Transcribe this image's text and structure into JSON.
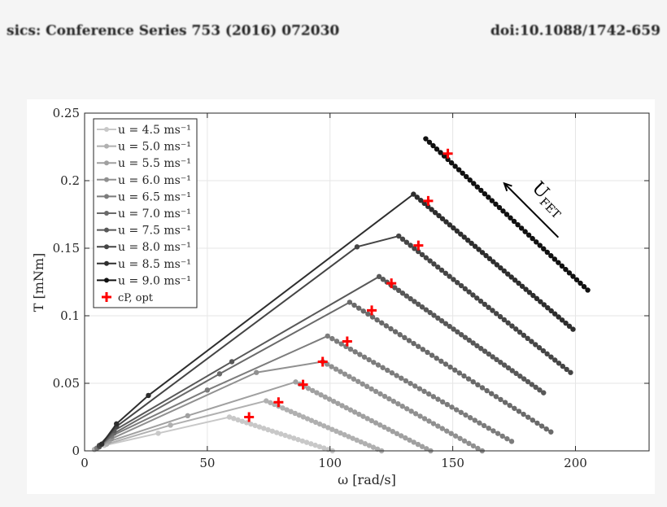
{
  "header": {
    "left": "sics: Conference Series 753 (2016) 072030",
    "right": "doi:10.1088/1742-659"
  },
  "chart_data": {
    "type": "line",
    "xlabel": "ω [rad/s]",
    "ylabel": "T [mNm]",
    "xlim": [
      0,
      230
    ],
    "ylim": [
      0,
      0.25
    ],
    "xticks": [
      0,
      50,
      100,
      150,
      200
    ],
    "xtick_labels": [
      "0",
      "50",
      "100",
      "150",
      "200"
    ],
    "yticks": [
      0,
      0.05,
      0.1,
      0.15,
      0.2,
      0.25
    ],
    "ytick_labels": [
      "0",
      "0.05",
      "0.1",
      "0.15",
      "0.2",
      "0.25"
    ],
    "grid": true,
    "legend_position": "top-left",
    "series": [
      {
        "name": "u = 4.5 ms⁻¹",
        "color": "#c8c8c8",
        "rise": [
          [
            4,
            0.001
          ],
          [
            8,
            0.004
          ],
          [
            30,
            0.013
          ],
          [
            59,
            0.025
          ]
        ],
        "fall_end": [
          101,
          0
        ],
        "n_fall": 24
      },
      {
        "name": "u = 5.0 ms⁻¹",
        "color": "#b0b0b0",
        "rise": [
          [
            4,
            0.001
          ],
          [
            9,
            0.005
          ],
          [
            35,
            0.019
          ],
          [
            74,
            0.037
          ]
        ],
        "fall_end": [
          121,
          0
        ],
        "n_fall": 28
      },
      {
        "name": "u = 5.5 ms⁻¹",
        "color": "#a0a0a0",
        "rise": [
          [
            5,
            0.002
          ],
          [
            10,
            0.007
          ],
          [
            42,
            0.026
          ],
          [
            86,
            0.051
          ]
        ],
        "fall_end": [
          141,
          0
        ],
        "n_fall": 32
      },
      {
        "name": "u = 6.0 ms⁻¹",
        "color": "#909090",
        "rise": [
          [
            5,
            0.002
          ],
          [
            11,
            0.009
          ],
          [
            70,
            0.058
          ],
          [
            97,
            0.066
          ]
        ],
        "fall_end": [
          162,
          0
        ],
        "n_fall": 36
      },
      {
        "name": "u = 6.5 ms⁻¹",
        "color": "#7c7c7c",
        "rise": [
          [
            5,
            0.002
          ],
          [
            11,
            0.011
          ],
          [
            50,
            0.045
          ],
          [
            99,
            0.085
          ]
        ],
        "fall_end": [
          174,
          0.007
        ],
        "n_fall": 40
      },
      {
        "name": "u = 7.0 ms⁻¹",
        "color": "#6a6a6a",
        "rise": [
          [
            6,
            0.003
          ],
          [
            12,
            0.013
          ],
          [
            55,
            0.057
          ],
          [
            108,
            0.11
          ]
        ],
        "fall_end": [
          190,
          0.014
        ],
        "n_fall": 44
      },
      {
        "name": "u = 7.5 ms⁻¹",
        "color": "#585858",
        "rise": [
          [
            6,
            0.003
          ],
          [
            12,
            0.015
          ],
          [
            60,
            0.066
          ],
          [
            120,
            0.129
          ]
        ],
        "fall_end": [
          187,
          0.043
        ],
        "n_fall": 42
      },
      {
        "name": "u = 8.0 ms⁻¹",
        "color": "#454545",
        "rise": [
          [
            6,
            0.004
          ],
          [
            13,
            0.018
          ],
          [
            111,
            0.151
          ],
          [
            128,
            0.159
          ]
        ],
        "fall_end": [
          198,
          0.058
        ],
        "n_fall": 44
      },
      {
        "name": "u = 8.5 ms⁻¹",
        "color": "#2e2e2e",
        "rise": [
          [
            7,
            0.005
          ],
          [
            13,
            0.02
          ],
          [
            26,
            0.041
          ],
          [
            134,
            0.19
          ]
        ],
        "fall_end": [
          199,
          0.09
        ],
        "n_fall": 44
      },
      {
        "name": "u = 9.0 ms⁻¹",
        "color": "#111111",
        "rise": [
          [
            139,
            0.231
          ]
        ],
        "fall_end": [
          205,
          0.119
        ],
        "n_fall": 44
      }
    ],
    "optimum": {
      "name": "cP, opt",
      "color": "#ff0000",
      "points": [
        [
          67,
          0.025
        ],
        [
          79,
          0.036
        ],
        [
          89,
          0.049
        ],
        [
          97,
          0.066
        ],
        [
          107,
          0.081
        ],
        [
          117,
          0.104
        ],
        [
          125,
          0.124
        ],
        [
          136,
          0.152
        ],
        [
          140,
          0.185
        ],
        [
          148,
          0.22
        ]
      ]
    },
    "annotation": {
      "text": "U",
      "subscript": "FET",
      "arrow_from": [
        193,
        0.158
      ],
      "arrow_to": [
        171,
        0.198
      ]
    }
  }
}
